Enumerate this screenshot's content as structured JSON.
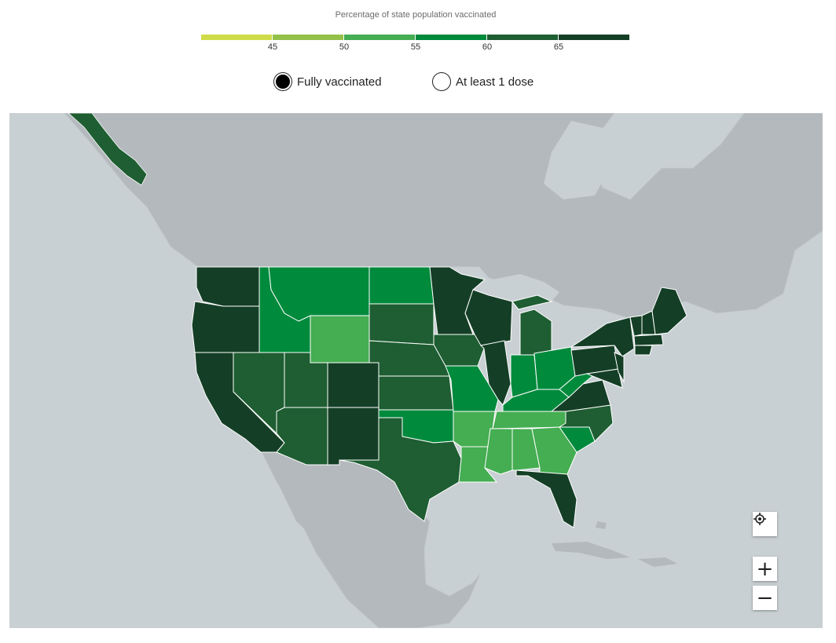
{
  "legend": {
    "title": "Percentage of state population vaccinated",
    "ticks": [
      "45",
      "50",
      "55",
      "60",
      "65"
    ],
    "colors": [
      "#cfdc4a",
      "#93c14a",
      "#45ad52",
      "#008a3c",
      "#1e5e32",
      "#143f26"
    ]
  },
  "options": {
    "fully_vaccinated": "Fully vaccinated",
    "at_least_one_dose": "At least 1 dose",
    "selected": "fully_vaccinated"
  },
  "map": {
    "land_color": "#b3b9bc",
    "water_color": "#c9d0d3"
  },
  "controls": {
    "locate_icon": "crosshair-icon",
    "zoom_in": "+",
    "zoom_out": "−"
  }
}
